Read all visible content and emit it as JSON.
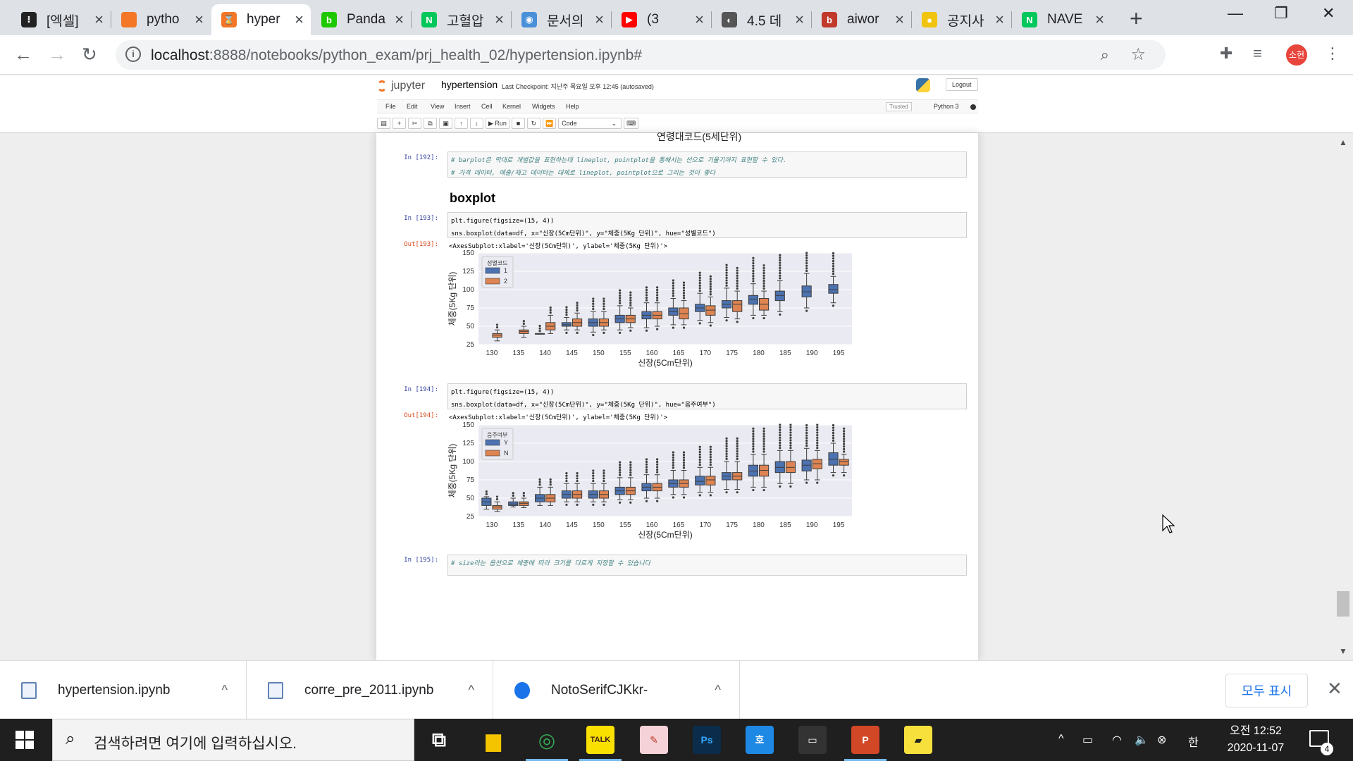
{
  "browser": {
    "tabs": [
      {
        "title": "[엑셀]",
        "color": "#222222",
        "glyph": "⁝"
      },
      {
        "title": "pytho",
        "color": "#f37726",
        "glyph": ""
      },
      {
        "title": "hyper",
        "color": "#f37726",
        "glyph": "⌛",
        "active": true
      },
      {
        "title": "Panda",
        "color": "#1ec800",
        "glyph": "b"
      },
      {
        "title": "고혈압",
        "color": "#03c75a",
        "glyph": "N"
      },
      {
        "title": "문서의",
        "color": "#4a90d9",
        "glyph": "◉"
      },
      {
        "title": "(3",
        "color": "#ff0000",
        "glyph": "▶"
      },
      {
        "title": "4.5 데",
        "color": "#555555",
        "glyph": "◐"
      },
      {
        "title": "aiwor",
        "color": "#c0392b",
        "glyph": "b"
      },
      {
        "title": "공지사",
        "color": "#f1c40f",
        "glyph": "●"
      },
      {
        "title": "NAVE",
        "color": "#03c75a",
        "glyph": "N"
      }
    ],
    "url_host": "localhost",
    "url_rest": ":8888/notebooks/python_exam/prj_health_02/hypertension.ipynb#",
    "profile_initial": "소현"
  },
  "jupyter": {
    "logo_text": "jupyter",
    "notebook_name": "hypertension",
    "checkpoint": "Last Checkpoint: 지난주 목요일 오후 12:45  (autosaved)",
    "logout": "Logout",
    "menu": [
      "File",
      "Edit",
      "View",
      "Insert",
      "Cell",
      "Kernel",
      "Widgets",
      "Help"
    ],
    "trusted": "Trusted",
    "kernel": "Python 3",
    "toolbar": {
      "run": "▶ Run",
      "celltype": "Code"
    }
  },
  "cells": {
    "prev_xlabel": "연령대코드(5세단위)",
    "c192_prompt": "In [192]:",
    "c192_line1": "# barplot은 막대로 개별값을 표현하는데 lineplot, pointplot을 통해서는 선으로 기울기까지 표현할 수 있다.",
    "c192_line2": "# 가격 데이터, 매출/재고 데이터는 대체로 lineplot, pointplot으로 그리는 것이 좋다",
    "heading": "boxplot",
    "c193_prompt": "In [193]:",
    "c193_line1": "plt.figure(figsize=(15, 4))",
    "c193_line2": "sns.boxplot(data=df, x=\"신장(5Cm단위)\", y=\"체중(5Kg 단위)\", hue=\"성별코드\")",
    "o193_prompt": "Out[193]:",
    "o193_text": "<AxesSubplot:xlabel='신장(5Cm단위)', ylabel='체중(5Kg 단위)'>",
    "c194_prompt": "In [194]:",
    "c194_line1": "plt.figure(figsize=(15, 4))",
    "c194_line2": "sns.boxplot(data=df, x=\"신장(5Cm단위)\", y=\"체중(5Kg 단위)\", hue=\"음주여부\")",
    "o194_prompt": "Out[194]:",
    "o194_text": "<AxesSubplot:xlabel='신장(5Cm단위)', ylabel='체중(5Kg 단위)'>",
    "c195_prompt": "In [195]:",
    "c195_line1": "# size라는 옵션으로 체중에 따라 크기를 다르게 지정할 수 있습니다"
  },
  "chart_data": [
    {
      "type": "boxplot",
      "xlabel": "신장(5Cm단위)",
      "ylabel": "체중(5Kg 단위)",
      "ylim": [
        25,
        150
      ],
      "yticks": [
        25,
        50,
        75,
        100,
        125,
        150
      ],
      "categories": [
        "130",
        "135",
        "140",
        "145",
        "150",
        "155",
        "160",
        "165",
        "170",
        "175",
        "180",
        "185",
        "190",
        "195"
      ],
      "legend_title": "성별코드",
      "legend_position": "top-left",
      "colors": [
        "#4c72b0",
        "#dd8452"
      ],
      "series": [
        {
          "name": "1",
          "boxes": [
            null,
            null,
            [
              40,
              40,
              40,
              40,
              40
            ],
            [
              45,
              50,
              52,
              55,
              62
            ],
            [
              42,
              50,
              55,
              60,
              70
            ],
            [
              45,
              55,
              60,
              65,
              78
            ],
            [
              48,
              60,
              65,
              70,
              82
            ],
            [
              52,
              65,
              70,
              75,
              88
            ],
            [
              58,
              70,
              75,
              80,
              95
            ],
            [
              62,
              75,
              80,
              85,
              102
            ],
            [
              65,
              80,
              87,
              92,
              108
            ],
            [
              70,
              85,
              92,
              98,
              112
            ],
            [
              75,
              90,
              97,
              105,
              122
            ],
            [
              82,
              95,
              100,
              107,
              118
            ]
          ]
        },
        {
          "name": "2",
          "boxes": [
            [
              30,
              35,
              38,
              40,
              45
            ],
            [
              35,
              40,
              43,
              45,
              50
            ],
            [
              40,
              45,
              50,
              55,
              65
            ],
            [
              45,
              50,
              55,
              60,
              68
            ],
            [
              45,
              50,
              55,
              60,
              70
            ],
            [
              48,
              55,
              60,
              65,
              75
            ],
            [
              50,
              60,
              65,
              70,
              82
            ],
            [
              52,
              60,
              67,
              75,
              85
            ],
            [
              55,
              65,
              72,
              78,
              90
            ],
            [
              60,
              70,
              80,
              85,
              98
            ],
            [
              65,
              72,
              80,
              88,
              98
            ],
            null,
            null,
            null
          ]
        }
      ]
    },
    {
      "type": "boxplot",
      "xlabel": "신장(5Cm단위)",
      "ylabel": "체중(5Kg 단위)",
      "ylim": [
        25,
        150
      ],
      "yticks": [
        25,
        50,
        75,
        100,
        125,
        150
      ],
      "categories": [
        "130",
        "135",
        "140",
        "145",
        "150",
        "155",
        "160",
        "165",
        "170",
        "175",
        "180",
        "185",
        "190",
        "195"
      ],
      "legend_title": "음주여부",
      "legend_position": "top-left",
      "colors": [
        "#4c72b0",
        "#dd8452"
      ],
      "series": [
        {
          "name": "Y",
          "boxes": [
            [
              35,
              40,
              45,
              50,
              52
            ],
            [
              38,
              40,
              42,
              45,
              50
            ],
            [
              40,
              45,
              50,
              55,
              65
            ],
            [
              45,
              50,
              55,
              60,
              70
            ],
            [
              45,
              50,
              55,
              60,
              70
            ],
            [
              48,
              55,
              60,
              65,
              78
            ],
            [
              50,
              60,
              65,
              70,
              82
            ],
            [
              55,
              65,
              70,
              75,
              88
            ],
            [
              58,
              68,
              73,
              80,
              92
            ],
            [
              62,
              75,
              80,
              85,
              100
            ],
            [
              65,
              80,
              87,
              95,
              110
            ],
            [
              70,
              85,
              92,
              100,
              115
            ],
            [
              75,
              87,
              95,
              102,
              118
            ],
            [
              85,
              95,
              103,
              112,
              125
            ]
          ]
        },
        {
          "name": "N",
          "boxes": [
            [
              32,
              35,
              38,
              40,
              45
            ],
            [
              37,
              40,
              43,
              45,
              50
            ],
            [
              40,
              45,
              50,
              55,
              65
            ],
            [
              45,
              50,
              55,
              60,
              70
            ],
            [
              45,
              50,
              55,
              60,
              70
            ],
            [
              48,
              55,
              60,
              65,
              78
            ],
            [
              50,
              60,
              65,
              70,
              82
            ],
            [
              55,
              65,
              70,
              75,
              88
            ],
            [
              58,
              68,
              75,
              80,
              92
            ],
            [
              62,
              75,
              80,
              85,
              100
            ],
            [
              65,
              80,
              88,
              95,
              110
            ],
            [
              70,
              85,
              92,
              100,
              115
            ],
            [
              75,
              90,
              97,
              103,
              115
            ],
            [
              85,
              95,
              100,
              103,
              110
            ]
          ]
        }
      ]
    }
  ],
  "downloads": {
    "items": [
      "hypertension.ipynb",
      "corre_pre_2011.ipynb",
      "NotoSerifCJKkr-"
    ],
    "show_all": "모두 표시"
  },
  "taskbar": {
    "search_placeholder": "검색하려면 여기에 입력하십시오.",
    "apps": [
      {
        "name": "task-view",
        "label": "⧉",
        "bg": "transparent",
        "fg": "#ffffff"
      },
      {
        "name": "file-explorer",
        "label": "▆",
        "bg": "transparent",
        "fg": "#f5c400"
      },
      {
        "name": "chrome",
        "label": "◎",
        "bg": "transparent",
        "fg": "#34a853",
        "active": true
      },
      {
        "name": "kakaotalk",
        "label": "TALK",
        "bg": "#f9e000",
        "fg": "#3c1e1e",
        "active": true
      },
      {
        "name": "pen-tool",
        "label": "✎",
        "bg": "#f4d2d8",
        "fg": "#c0392b"
      },
      {
        "name": "photoshop",
        "label": "Ps",
        "bg": "#0b2c4a",
        "fg": "#31a8ff"
      },
      {
        "name": "hangul",
        "label": "호",
        "bg": "#1e88e5",
        "fg": "#ffffff"
      },
      {
        "name": "terminal",
        "label": "▭",
        "bg": "#333333",
        "fg": "#ffffff"
      },
      {
        "name": "powerpoint",
        "label": "P",
        "bg": "#d24726",
        "fg": "#ffffff",
        "active": true
      },
      {
        "name": "sticky-notes",
        "label": "▰",
        "bg": "#f7e03c",
        "fg": "#222222"
      }
    ],
    "ime": "한",
    "time": "오전 12:52",
    "date": "2020-11-07",
    "notification_count": "4"
  }
}
